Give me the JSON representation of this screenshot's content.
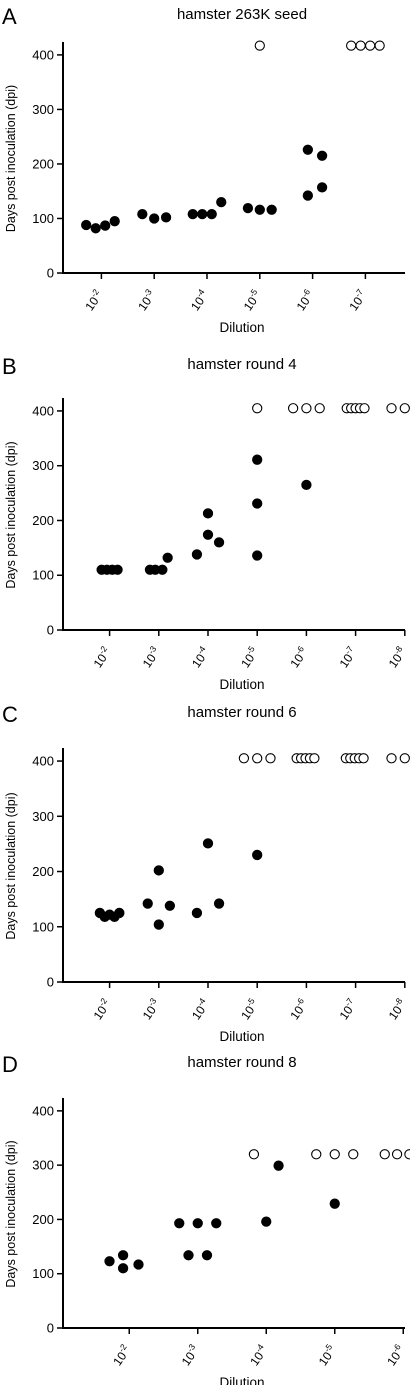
{
  "chart_data": [
    {
      "panel_label": "A",
      "type": "scatter",
      "title": "hamster 263K seed",
      "xlabel": "Dilution",
      "ylabel": "Days post inoculation (dpi)",
      "ylim": [
        0,
        420
      ],
      "yticks": [
        0,
        100,
        200,
        300,
        400
      ],
      "categories": [
        {
          "base": "10",
          "exp": "-2"
        },
        {
          "base": "10",
          "exp": "-3"
        },
        {
          "base": "10",
          "exp": "-4"
        },
        {
          "base": "10",
          "exp": "-5"
        },
        {
          "base": "10",
          "exp": "-6"
        },
        {
          "base": "10",
          "exp": "-7"
        }
      ],
      "series": [
        {
          "marker": "filled",
          "points": [
            {
              "cat": 0,
              "y": 88,
              "dx": -0.32
            },
            {
              "cat": 0,
              "y": 82,
              "dx": -0.12
            },
            {
              "cat": 0,
              "y": 87,
              "dx": 0.08
            },
            {
              "cat": 0,
              "y": 95,
              "dx": 0.28
            },
            {
              "cat": 1,
              "y": 108,
              "dx": -0.25
            },
            {
              "cat": 1,
              "y": 100,
              "dx": 0
            },
            {
              "cat": 1,
              "y": 102,
              "dx": 0.25
            },
            {
              "cat": 2,
              "y": 108,
              "dx": -0.3
            },
            {
              "cat": 2,
              "y": 108,
              "dx": -0.1
            },
            {
              "cat": 2,
              "y": 108,
              "dx": 0.1
            },
            {
              "cat": 2,
              "y": 130,
              "dx": 0.3
            },
            {
              "cat": 3,
              "y": 119,
              "dx": -0.25
            },
            {
              "cat": 3,
              "y": 116,
              "dx": 0
            },
            {
              "cat": 3,
              "y": 116,
              "dx": 0.25
            },
            {
              "cat": 4,
              "y": 226,
              "dx": -0.1
            },
            {
              "cat": 4,
              "y": 142,
              "dx": -0.1
            },
            {
              "cat": 4,
              "y": 215,
              "dx": 0.2
            },
            {
              "cat": 4,
              "y": 157,
              "dx": 0.2
            }
          ]
        },
        {
          "marker": "open",
          "points": [
            {
              "cat": 3,
              "y": 417,
              "dx": 0
            },
            {
              "cat": 5,
              "y": 417,
              "dx": -0.3
            },
            {
              "cat": 5,
              "y": 417,
              "dx": -0.1
            },
            {
              "cat": 5,
              "y": 417,
              "dx": 0.1
            },
            {
              "cat": 5,
              "y": 417,
              "dx": 0.3
            }
          ]
        }
      ]
    },
    {
      "panel_label": "B",
      "type": "scatter",
      "title": "hamster round 4",
      "xlabel": "Dilution",
      "ylabel": "Days post inoculation (dpi)",
      "ylim": [
        0,
        420
      ],
      "yticks": [
        0,
        100,
        200,
        300,
        400
      ],
      "categories": [
        {
          "base": "10",
          "exp": "-2"
        },
        {
          "base": "10",
          "exp": "-3"
        },
        {
          "base": "10",
          "exp": "-4"
        },
        {
          "base": "10",
          "exp": "-5"
        },
        {
          "base": "10",
          "exp": "-6"
        },
        {
          "base": "10",
          "exp": "-7"
        },
        {
          "base": "10",
          "exp": "-8"
        }
      ],
      "series": [
        {
          "marker": "filled",
          "points": [
            {
              "cat": 0,
              "y": 110,
              "dx": -0.18
            },
            {
              "cat": 0,
              "y": 110,
              "dx": -0.06
            },
            {
              "cat": 0,
              "y": 110,
              "dx": 0.06
            },
            {
              "cat": 0,
              "y": 110,
              "dx": 0.18
            },
            {
              "cat": 1,
              "y": 110,
              "dx": -0.2
            },
            {
              "cat": 1,
              "y": 110,
              "dx": -0.08
            },
            {
              "cat": 1,
              "y": 110,
              "dx": 0.08
            },
            {
              "cat": 1,
              "y": 132,
              "dx": 0.2
            },
            {
              "cat": 2,
              "y": 138,
              "dx": -0.25
            },
            {
              "cat": 2,
              "y": 213,
              "dx": 0
            },
            {
              "cat": 2,
              "y": 174,
              "dx": 0
            },
            {
              "cat": 2,
              "y": 160,
              "dx": 0.25
            },
            {
              "cat": 3,
              "y": 311,
              "dx": 0
            },
            {
              "cat": 3,
              "y": 231,
              "dx": 0
            },
            {
              "cat": 3,
              "y": 136,
              "dx": 0
            },
            {
              "cat": 4,
              "y": 265,
              "dx": 0
            }
          ]
        },
        {
          "marker": "open",
          "points": [
            {
              "cat": 3,
              "y": 405,
              "dx": 0
            },
            {
              "cat": 4,
              "y": 405,
              "dx": -0.3
            },
            {
              "cat": 4,
              "y": 405,
              "dx": 0
            },
            {
              "cat": 4,
              "y": 405,
              "dx": 0.3
            },
            {
              "cat": 5,
              "y": 405,
              "dx": -0.2
            },
            {
              "cat": 5,
              "y": 405,
              "dx": -0.1
            },
            {
              "cat": 5,
              "y": 405,
              "dx": 0
            },
            {
              "cat": 5,
              "y": 405,
              "dx": 0.1
            },
            {
              "cat": 5,
              "y": 405,
              "dx": 0.2
            },
            {
              "cat": 6,
              "y": 405,
              "dx": -0.3
            },
            {
              "cat": 6,
              "y": 405,
              "dx": 0
            },
            {
              "cat": 6,
              "y": 405,
              "dx": 0.3
            }
          ]
        }
      ]
    },
    {
      "panel_label": "C",
      "type": "scatter",
      "title": "hamster round 6",
      "xlabel": "Dilution",
      "ylabel": "Days post inoculation (dpi)",
      "ylim": [
        0,
        420
      ],
      "yticks": [
        0,
        100,
        200,
        300,
        400
      ],
      "categories": [
        {
          "base": "10",
          "exp": "-2"
        },
        {
          "base": "10",
          "exp": "-3"
        },
        {
          "base": "10",
          "exp": "-4"
        },
        {
          "base": "10",
          "exp": "-5"
        },
        {
          "base": "10",
          "exp": "-6"
        },
        {
          "base": "10",
          "exp": "-7"
        },
        {
          "base": "10",
          "exp": "-8"
        }
      ],
      "series": [
        {
          "marker": "filled",
          "points": [
            {
              "cat": 0,
              "y": 125,
              "dx": -0.22
            },
            {
              "cat": 0,
              "y": 118,
              "dx": -0.11
            },
            {
              "cat": 0,
              "y": 122,
              "dx": 0
            },
            {
              "cat": 0,
              "y": 118,
              "dx": 0.11
            },
            {
              "cat": 0,
              "y": 125,
              "dx": 0.22
            },
            {
              "cat": 1,
              "y": 142,
              "dx": -0.25
            },
            {
              "cat": 1,
              "y": 202,
              "dx": 0
            },
            {
              "cat": 1,
              "y": 104,
              "dx": 0
            },
            {
              "cat": 1,
              "y": 138,
              "dx": 0.25
            },
            {
              "cat": 2,
              "y": 125,
              "dx": -0.25
            },
            {
              "cat": 2,
              "y": 251,
              "dx": 0
            },
            {
              "cat": 2,
              "y": 142,
              "dx": 0.25
            },
            {
              "cat": 3,
              "y": 230,
              "dx": 0
            }
          ]
        },
        {
          "marker": "open",
          "points": [
            {
              "cat": 3,
              "y": 405,
              "dx": -0.3
            },
            {
              "cat": 3,
              "y": 405,
              "dx": 0
            },
            {
              "cat": 3,
              "y": 405,
              "dx": 0.3
            },
            {
              "cat": 4,
              "y": 405,
              "dx": -0.22
            },
            {
              "cat": 4,
              "y": 405,
              "dx": -0.12
            },
            {
              "cat": 4,
              "y": 405,
              "dx": -0.02
            },
            {
              "cat": 4,
              "y": 405,
              "dx": 0.08
            },
            {
              "cat": 4,
              "y": 405,
              "dx": 0.18
            },
            {
              "cat": 5,
              "y": 405,
              "dx": -0.22
            },
            {
              "cat": 5,
              "y": 405,
              "dx": -0.12
            },
            {
              "cat": 5,
              "y": 405,
              "dx": -0.02
            },
            {
              "cat": 5,
              "y": 405,
              "dx": 0.08
            },
            {
              "cat": 5,
              "y": 405,
              "dx": 0.18
            },
            {
              "cat": 6,
              "y": 405,
              "dx": -0.3
            },
            {
              "cat": 6,
              "y": 405,
              "dx": 0
            },
            {
              "cat": 6,
              "y": 405,
              "dx": 0.3
            }
          ]
        }
      ]
    },
    {
      "panel_label": "D",
      "type": "scatter",
      "title": "hamster round 8",
      "xlabel": "Dilution",
      "ylabel": "Days post inoculation (dpi)",
      "ylim": [
        0,
        420
      ],
      "yticks": [
        0,
        100,
        200,
        300,
        400
      ],
      "categories": [
        {
          "base": "10",
          "exp": "-2"
        },
        {
          "base": "10",
          "exp": "-3"
        },
        {
          "base": "10",
          "exp": "-4"
        },
        {
          "base": "10",
          "exp": "-5"
        },
        {
          "base": "10",
          "exp": "-6"
        }
      ],
      "series": [
        {
          "marker": "filled",
          "points": [
            {
              "cat": 0,
              "y": 123,
              "dx": -0.32
            },
            {
              "cat": 0,
              "y": 134,
              "dx": -0.1
            },
            {
              "cat": 0,
              "y": 110,
              "dx": -0.1
            },
            {
              "cat": 0,
              "y": 117,
              "dx": 0.15
            },
            {
              "cat": 1,
              "y": 193,
              "dx": -0.3
            },
            {
              "cat": 1,
              "y": 193,
              "dx": 0
            },
            {
              "cat": 1,
              "y": 193,
              "dx": 0.3
            },
            {
              "cat": 1,
              "y": 134,
              "dx": -0.15
            },
            {
              "cat": 1,
              "y": 134,
              "dx": 0.15
            },
            {
              "cat": 2,
              "y": 196,
              "dx": 0
            },
            {
              "cat": 2,
              "y": 299,
              "dx": 0.2
            },
            {
              "cat": 3,
              "y": 229,
              "dx": 0
            }
          ]
        },
        {
          "marker": "open",
          "points": [
            {
              "cat": 2,
              "y": 320,
              "dx": -0.2
            },
            {
              "cat": 3,
              "y": 320,
              "dx": -0.3
            },
            {
              "cat": 3,
              "y": 320,
              "dx": 0
            },
            {
              "cat": 3,
              "y": 320,
              "dx": 0.3
            },
            {
              "cat": 4,
              "y": 320,
              "dx": -0.3
            },
            {
              "cat": 4,
              "y": 320,
              "dx": -0.1
            },
            {
              "cat": 4,
              "y": 320,
              "dx": 0.1
            },
            {
              "cat": 4,
              "y": 320,
              "dx": 0.3
            }
          ]
        }
      ]
    }
  ]
}
